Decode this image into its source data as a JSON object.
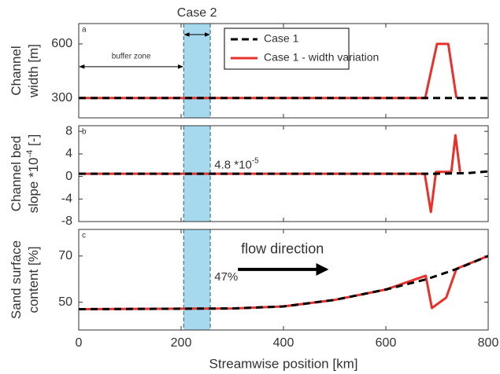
{
  "chart_data": [
    {
      "type": "line",
      "panel_label": "a",
      "ylabel_lines": [
        [
          {
            "text": "Channel"
          }
        ],
        [
          {
            "text": "width [m]"
          }
        ]
      ],
      "xlim": [
        0,
        800
      ],
      "ylim": [
        190,
        713
      ],
      "yticks": [
        300,
        600
      ],
      "region": [
        205,
        257
      ],
      "region_color": "#a6d9ee",
      "region_label": "Case 2",
      "region_arrow_y": 652,
      "legend": "top",
      "annotations": [
        {
          "text": "buffer zone",
          "x": [
            0,
            205
          ],
          "y": 474,
          "text_y": 530
        }
      ],
      "series": [
        {
          "name": "Case 1 - width variation",
          "color": "#e8312a",
          "dashed": false,
          "x": [
            0,
            677,
            700,
            722,
            738
          ],
          "values": [
            300,
            300,
            600,
            600,
            300
          ]
        },
        {
          "name": "Case 1",
          "color": "#000000",
          "dashed": true,
          "x": [
            0,
            800
          ],
          "values": [
            300,
            300
          ]
        }
      ]
    },
    {
      "type": "line",
      "panel_label": "b",
      "ylabel_lines": [
        [
          {
            "text": "Channel bed"
          }
        ],
        [
          {
            "text": "slope *10"
          },
          {
            "text": "-4",
            "sup": true
          },
          {
            "text": " [-]"
          }
        ]
      ],
      "xlim": [
        0,
        800
      ],
      "ylim": [
        -8,
        9
      ],
      "yticks": [
        8,
        4,
        0,
        -4,
        -8
      ],
      "region": [
        205,
        257
      ],
      "region_color": "#a6d9ee",
      "annotations": [
        {
          "text": "4.8 *10",
          "sup": "-5",
          "x": 265,
          "y": 1.95
        }
      ],
      "series": [
        {
          "name": "Case 1 - width variation",
          "color": "#e8312a",
          "dashed": false,
          "x": [
            0,
            676,
            688,
            698,
            728,
            736,
            745
          ],
          "values": [
            0.48,
            0.48,
            -6.3,
            0.8,
            0.8,
            7.3,
            0.8
          ]
        },
        {
          "name": "Case 1",
          "color": "#000000",
          "dashed": true,
          "x": [
            0,
            700,
            760,
            800
          ],
          "values": [
            0.48,
            0.48,
            0.6,
            0.9
          ]
        }
      ]
    },
    {
      "type": "line",
      "panel_label": "c",
      "ylabel_lines": [
        [
          {
            "text": "Sand surface"
          }
        ],
        [
          {
            "text": "content [%]"
          }
        ]
      ],
      "xlabel": "Streamwise position [km]",
      "xlim": [
        0,
        800
      ],
      "xticks": [
        0,
        200,
        400,
        600,
        800
      ],
      "ylim": [
        38,
        81.5
      ],
      "yticks": [
        70,
        50
      ],
      "region": [
        205,
        257
      ],
      "region_color": "#a6d9ee",
      "annotations": [
        {
          "text": "47%",
          "x": 265,
          "y": 60.8
        },
        {
          "text": "flow direction",
          "x": [
            311,
            485
          ],
          "y": 64.2,
          "text_y": 72.7
        }
      ],
      "series": [
        {
          "name": "Case 1 - width variation",
          "color": "#e8312a",
          "dashed": false,
          "x": [
            0,
            300,
            400,
            500,
            600,
            678,
            690,
            718,
            738,
            800
          ],
          "values": [
            47,
            47.3,
            48.2,
            51,
            55.5,
            61.5,
            47.5,
            52,
            64.5,
            70
          ]
        },
        {
          "name": "Case 1",
          "color": "#000000",
          "dashed": true,
          "x": [
            0,
            300,
            400,
            500,
            600,
            680,
            740,
            800
          ],
          "values": [
            47,
            47.3,
            48.2,
            51,
            55.5,
            60,
            64.5,
            70
          ]
        }
      ]
    }
  ]
}
